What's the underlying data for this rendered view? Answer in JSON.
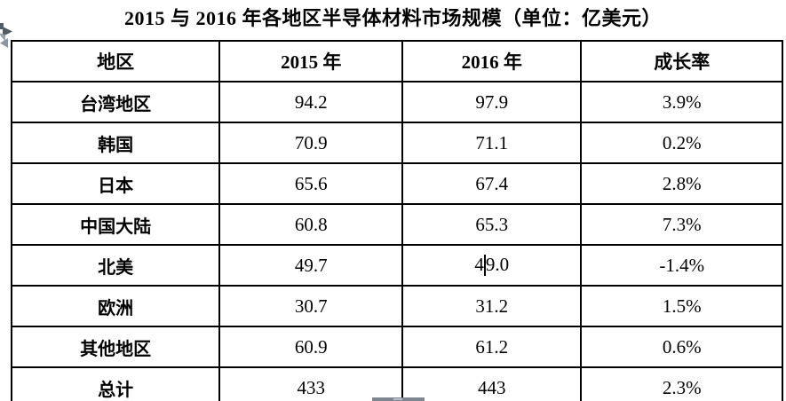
{
  "page": {
    "title": "2015 与 2016 年各地区半导体材料市场规模（单位：亿美元）"
  },
  "table": {
    "headers": [
      "地区",
      "2015 年",
      "2016 年",
      "成长率"
    ],
    "rows": [
      [
        "台湾地区",
        "94.2",
        "97.9",
        "3.9%"
      ],
      [
        "韩国",
        "70.9",
        "71.1",
        "0.2%"
      ],
      [
        "日本",
        "65.6",
        "67.4",
        "2.8%"
      ],
      [
        "中国大陆",
        "60.8",
        "65.3",
        "7.3%"
      ],
      [
        "北美",
        "49.7",
        "49.0",
        "-1.4%"
      ],
      [
        "欧洲",
        "30.7",
        "31.2",
        "1.5%"
      ],
      [
        "其他地区",
        "60.9",
        "61.2",
        "0.6%"
      ],
      [
        "总计",
        "433",
        "443",
        "2.3%"
      ]
    ],
    "text_cursor": {
      "row": 4,
      "col": 2,
      "char_offset": 1
    }
  },
  "icons": {
    "move_handle": "table-move-handle-icon",
    "scrollbar_thumb": "horizontal-scrollbar-thumb"
  },
  "colors": {
    "text": "#000000",
    "table_border": "#000000",
    "background": "#ffffff",
    "move_handle_dark": "#505c66",
    "move_handle_light": "#98a1a8",
    "scrollbar_thumb": "#7e8791"
  }
}
